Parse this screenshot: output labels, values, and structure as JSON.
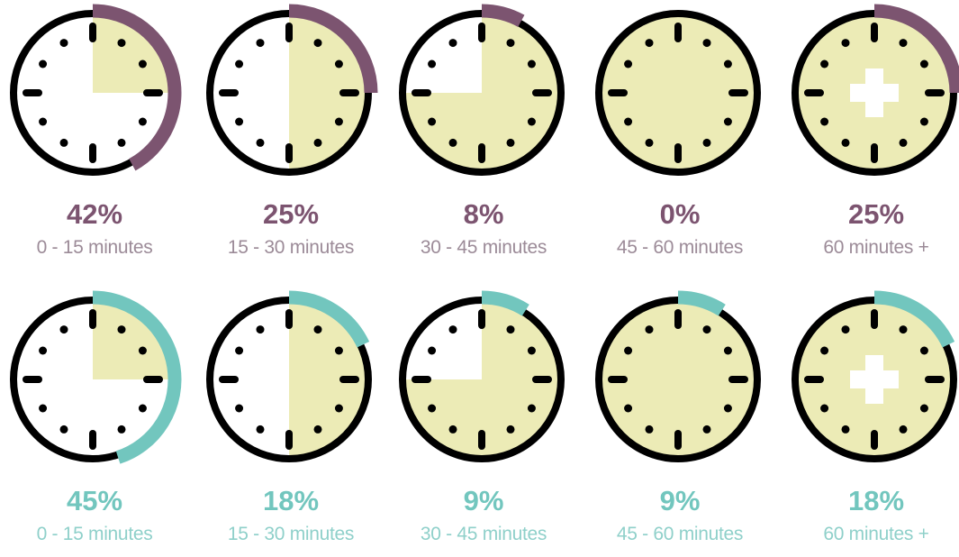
{
  "colors": {
    "fill": "#ecebb6",
    "rim": "#000000",
    "plus": "#ffffff",
    "row1_accent": "#7c5470",
    "row1_label": "#9c8b98",
    "row2_accent": "#72c6be",
    "row2_label": "#8fd0ca"
  },
  "rows": [
    {
      "accent": "#7c5470",
      "label_color": "#9c8b98",
      "items": [
        {
          "percent": "42%",
          "value": 42,
          "range": "0 - 15 minutes",
          "elapsed_minutes": 15
        },
        {
          "percent": "25%",
          "value": 25,
          "range": "15 - 30 minutes",
          "elapsed_minutes": 30
        },
        {
          "percent": "8%",
          "value": 8,
          "range": "30 - 45 minutes",
          "elapsed_minutes": 45
        },
        {
          "percent": "0%",
          "value": 0,
          "range": "45 - 60 minutes",
          "elapsed_minutes": 60
        },
        {
          "percent": "25%",
          "value": 25,
          "range": "60 minutes +",
          "elapsed_minutes": 60,
          "plus": true
        }
      ]
    },
    {
      "accent": "#72c6be",
      "label_color": "#8fd0ca",
      "items": [
        {
          "percent": "45%",
          "value": 45,
          "range": "0 - 15 minutes",
          "elapsed_minutes": 15
        },
        {
          "percent": "18%",
          "value": 18,
          "range": "15 - 30 minutes",
          "elapsed_minutes": 30
        },
        {
          "percent": "9%",
          "value": 9,
          "range": "30 - 45 minutes",
          "elapsed_minutes": 45
        },
        {
          "percent": "9%",
          "value": 9,
          "range": "45 - 60 minutes",
          "elapsed_minutes": 60
        },
        {
          "percent": "18%",
          "value": 18,
          "range": "60 minutes +",
          "elapsed_minutes": 60,
          "plus": true
        }
      ]
    }
  ]
}
